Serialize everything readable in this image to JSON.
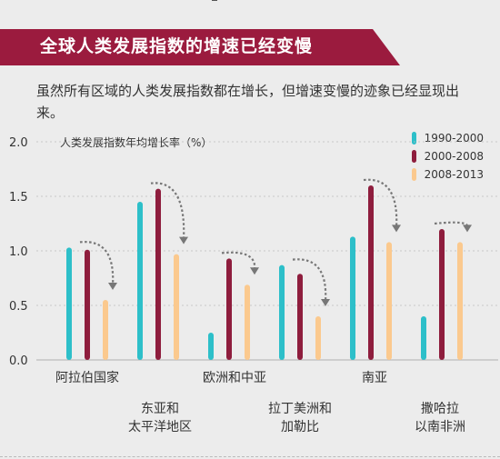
{
  "header": {
    "title": "全球人类发展指数的增速已经变慢"
  },
  "subtitle": "虽然所有区域的人类发展指数都在增长，但增速变慢的迹象已经显现出来。",
  "colors": {
    "header_bg": "#9b1b3e",
    "s1": "#2dbfc9",
    "s2": "#8e1d3d",
    "s3": "#fbc98e",
    "grid": "#bdbdbd"
  },
  "chart_data": {
    "type": "bar",
    "ylabel": "人类发展指数年均增长率（%）",
    "ylim": [
      0,
      2.0
    ],
    "yticks": [
      "0.0",
      "0.5",
      "1.0",
      "1.5",
      "2.0"
    ],
    "categories": [
      "阿拉伯国家",
      "东亚和\n太平洋地区",
      "欧洲和中亚",
      "拉丁美洲和\n加勒比",
      "南亚",
      "撒哈拉\n以南非洲"
    ],
    "series": [
      {
        "name": "1990-2000",
        "values": [
          1.03,
          1.45,
          0.25,
          0.87,
          1.13,
          0.4
        ]
      },
      {
        "name": "2000-2008",
        "values": [
          1.01,
          1.57,
          0.93,
          0.79,
          1.6,
          1.2
        ]
      },
      {
        "name": "2008-2013",
        "values": [
          0.55,
          0.97,
          0.69,
          0.4,
          1.08,
          1.08
        ]
      }
    ],
    "legend_position": "top-right"
  }
}
